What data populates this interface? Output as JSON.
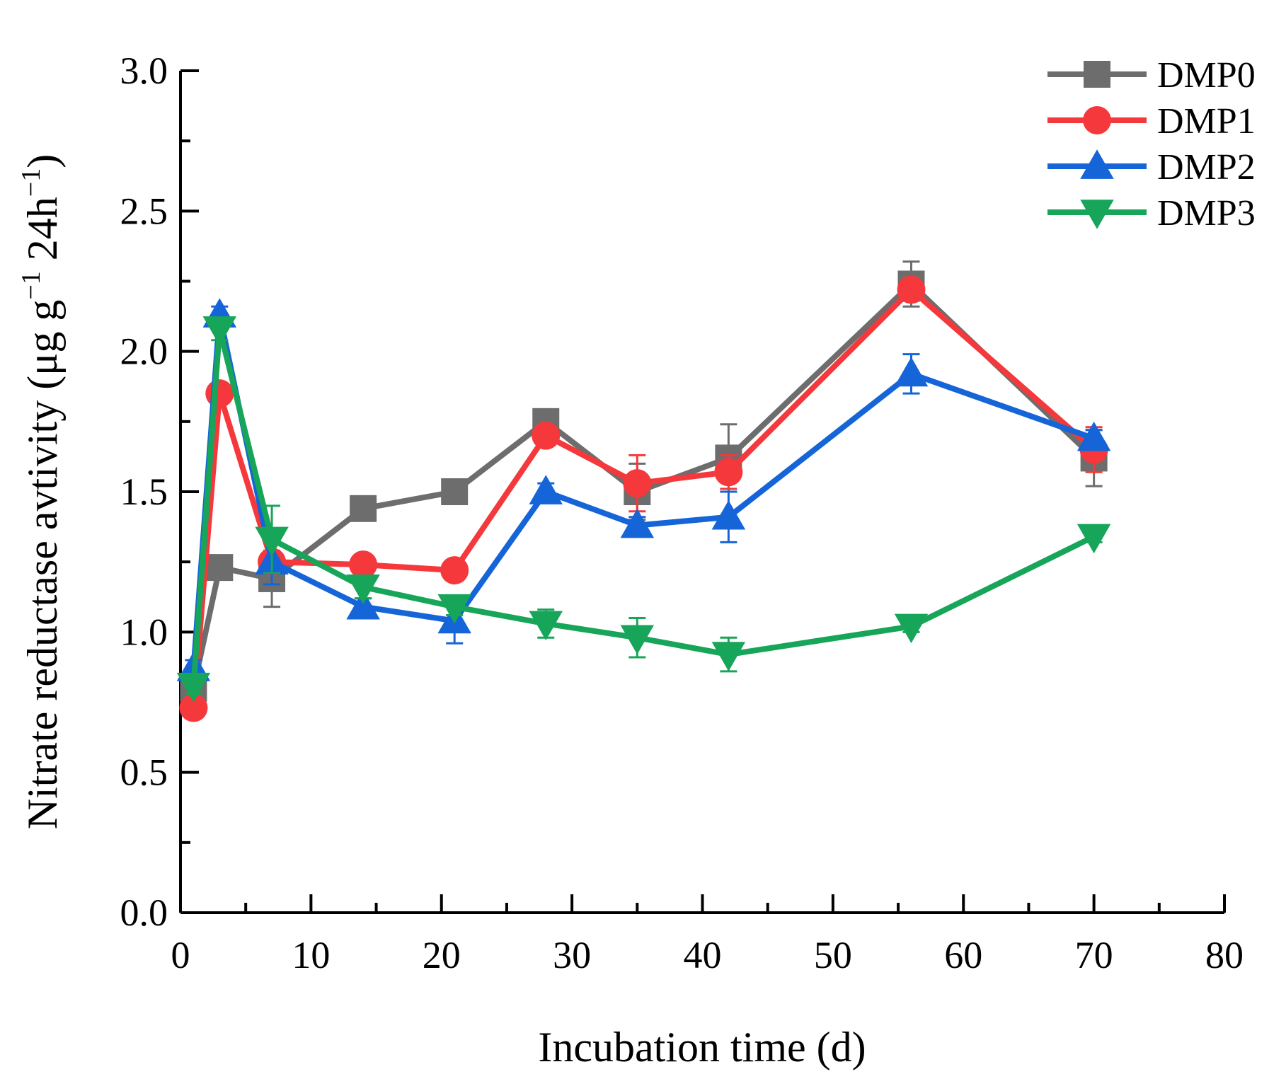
{
  "chart_data": {
    "type": "line",
    "xlabel": "Incubation time (d)",
    "ylabel": {
      "main": "Nitrate reductase avtivity (μg g",
      "sup1": "−1",
      "mid": " 24h",
      "sup2": "−1",
      "end": ")"
    },
    "xlim": [
      0,
      80
    ],
    "ylim": [
      0,
      3.0
    ],
    "xticks": [
      0,
      10,
      20,
      30,
      40,
      50,
      60,
      70,
      80
    ],
    "xtick_labels": [
      "0",
      "10",
      "20",
      "30",
      "40",
      "50",
      "60",
      "70",
      "80"
    ],
    "yticks": [
      0,
      0.5,
      1.0,
      1.5,
      2.0,
      2.5,
      3.0
    ],
    "ytick_labels": [
      "0.0",
      "0.5",
      "1.0",
      "1.5",
      "2.0",
      "2.5",
      "3.0"
    ],
    "grid": false,
    "legend_position": "top-right",
    "x": [
      1,
      3,
      7,
      14,
      21,
      28,
      35,
      42,
      56,
      70
    ],
    "series": [
      {
        "name": "DMP0",
        "color": "#6d6d6d",
        "marker": "square",
        "values": [
          0.8,
          1.23,
          1.19,
          1.44,
          1.5,
          1.75,
          1.5,
          1.62,
          2.24,
          1.62
        ],
        "errors": [
          0.03,
          0.03,
          0.1,
          0.03,
          0.03,
          0.03,
          0.1,
          0.12,
          0.08,
          0.1
        ]
      },
      {
        "name": "DMP1",
        "color": "#f5383b",
        "marker": "circle",
        "values": [
          0.73,
          1.85,
          1.25,
          1.24,
          1.22,
          1.7,
          1.53,
          1.57,
          2.22,
          1.65
        ],
        "errors": [
          0.02,
          0.02,
          0.03,
          0.03,
          0.03,
          0.03,
          0.1,
          0.06,
          0.04,
          0.08
        ]
      },
      {
        "name": "DMP2",
        "color": "#1565d8",
        "marker": "triangle-up",
        "values": [
          0.87,
          2.13,
          1.25,
          1.09,
          1.04,
          1.5,
          1.38,
          1.41,
          1.92,
          1.69
        ],
        "errors": [
          0.03,
          0.03,
          0.08,
          0.03,
          0.08,
          0.03,
          0.03,
          0.09,
          0.07,
          0.03
        ]
      },
      {
        "name": "DMP3",
        "color": "#17a55a",
        "marker": "triangle-down",
        "values": [
          0.81,
          2.08,
          1.33,
          1.16,
          1.09,
          1.03,
          0.98,
          0.92,
          1.02,
          1.34
        ],
        "errors": [
          0.03,
          0.04,
          0.12,
          0.04,
          0.03,
          0.05,
          0.07,
          0.06,
          0.02,
          0.02
        ]
      }
    ]
  }
}
